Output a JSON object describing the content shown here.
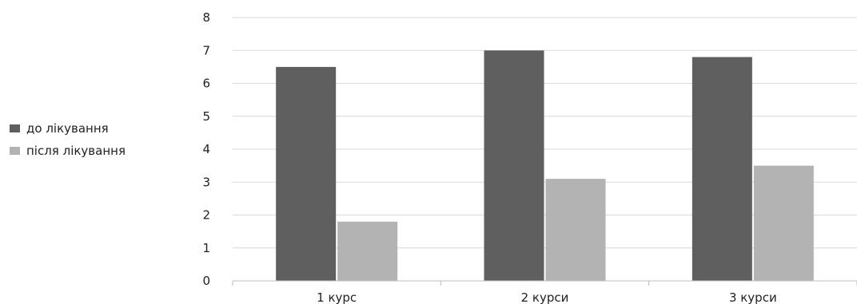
{
  "chart_data": {
    "type": "bar",
    "categories": [
      "1 курс",
      "2 курси",
      "3 курси"
    ],
    "series": [
      {
        "name": "до лікування",
        "values": [
          6.5,
          7.0,
          6.8
        ],
        "color": "#5f5f5f"
      },
      {
        "name": "після лікування",
        "values": [
          1.8,
          3.1,
          3.5
        ],
        "color": "#b3b3b3"
      }
    ],
    "ylim": [
      0,
      8
    ],
    "yticks": [
      0,
      1,
      2,
      3,
      4,
      5,
      6,
      7,
      8
    ],
    "grid": true,
    "legend_position": "left",
    "gridline_color": "#d9d9d9",
    "axis_color": "#bdbdbd"
  }
}
